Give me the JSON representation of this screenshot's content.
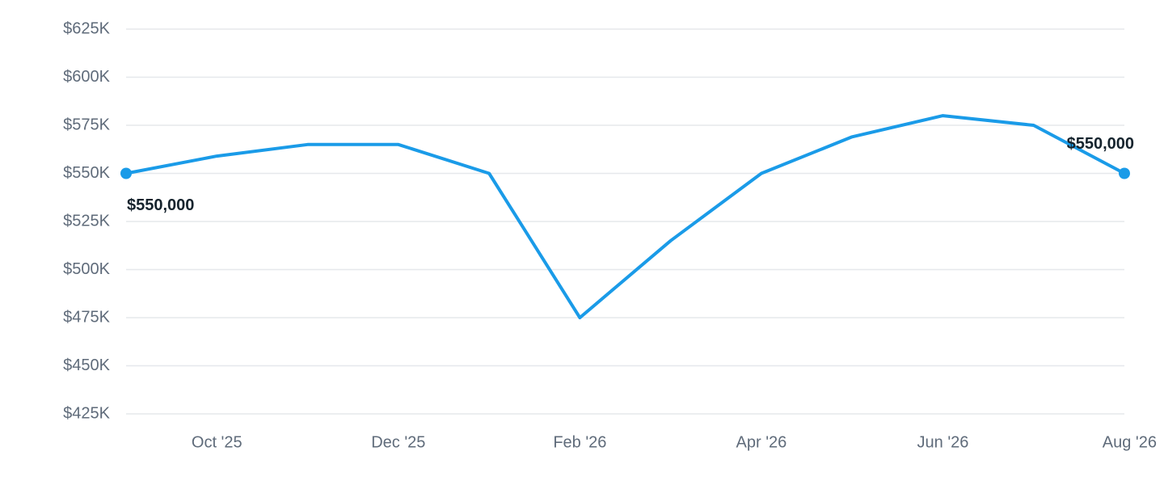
{
  "chart_data": {
    "type": "line",
    "categories": [
      null,
      "Oct '25",
      null,
      "Dec '25",
      null,
      "Feb '26",
      null,
      "Apr '26",
      null,
      "Jun '26",
      null,
      "Aug '26"
    ],
    "series": [
      {
        "color": "#1a9be8",
        "values": [
          550000,
          559000,
          565000,
          565000,
          550000,
          475000,
          515000,
          550000,
          569000,
          580000,
          575000,
          550000
        ],
        "value_labels": [
          "$550,000",
          null,
          null,
          null,
          null,
          null,
          null,
          null,
          null,
          null,
          null,
          "$550,000"
        ]
      }
    ],
    "ylim": [
      425000,
      625000
    ],
    "yticks": [
      {
        "value": 425000,
        "label": "$425K"
      },
      {
        "value": 450000,
        "label": "$450K"
      },
      {
        "value": 475000,
        "label": "$475K"
      },
      {
        "value": 500000,
        "label": "$500K"
      },
      {
        "value": 525000,
        "label": "$525K"
      },
      {
        "value": 550000,
        "label": "$550K"
      },
      {
        "value": 575000,
        "label": "$575K"
      },
      {
        "value": 600000,
        "label": "$600K"
      },
      {
        "value": 625000,
        "label": "$625K"
      }
    ],
    "grid": true
  }
}
